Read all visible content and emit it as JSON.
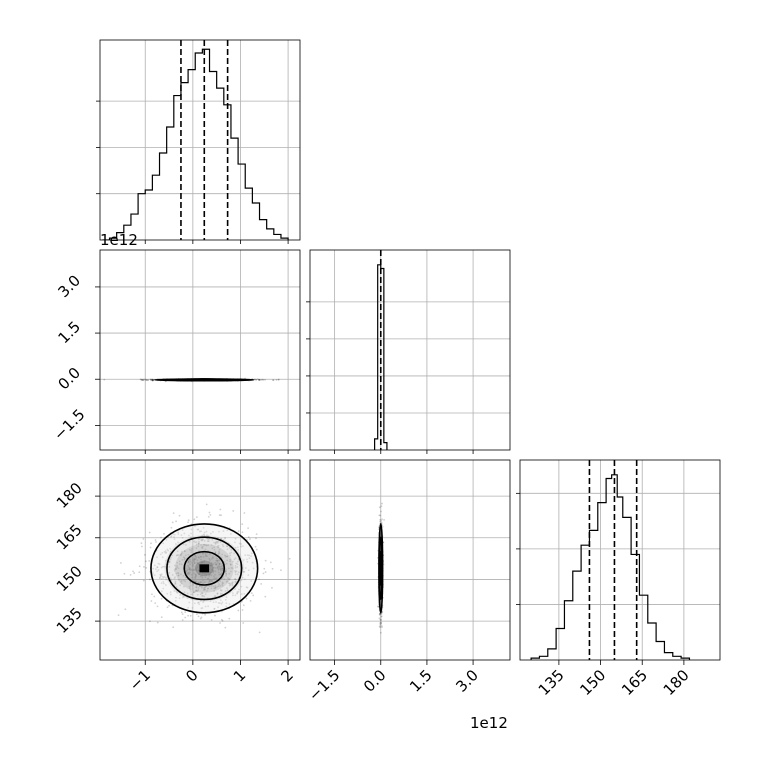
{
  "chart_data": {
    "type": "corner",
    "parameters": 3,
    "grid": true,
    "quantile_lines": "dashed",
    "panels": [
      {
        "id": "hist-p1",
        "kind": "histogram",
        "xlim": [
          -1.95,
          2.25
        ],
        "edges": [
          -1.9,
          -1.75,
          -1.6,
          -1.45,
          -1.3,
          -1.15,
          -1.0,
          -0.85,
          -0.7,
          -0.55,
          -0.4,
          -0.25,
          -0.1,
          0.05,
          0.2,
          0.35,
          0.5,
          0.65,
          0.8,
          0.95,
          1.1,
          1.25,
          1.4,
          1.55,
          1.7,
          1.85,
          2.0
        ],
        "counts": [
          0,
          1,
          4,
          8,
          14,
          25,
          27,
          35,
          47,
          61,
          78,
          85,
          92,
          101,
          103,
          91,
          82,
          73,
          55,
          41,
          28,
          20,
          11,
          6,
          3,
          1
        ],
        "quantiles": [
          -0.25,
          0.24,
          0.73
        ],
        "ylim": [
          0,
          108
        ],
        "ytick_values": [
          25,
          50,
          75
        ]
      },
      {
        "id": "scatter-p1-p2",
        "kind": "2d-density",
        "xlim": [
          -1.95,
          2.25
        ],
        "ylim": [
          -2.3,
          4.2
        ],
        "y_offset_text": "1e12",
        "center": [
          0.24,
          -0.02
        ],
        "spread": [
          0.52,
          0.012
        ],
        "contour_levels": [
          1.0,
          0.65,
          0.35
        ]
      },
      {
        "id": "hist-p2",
        "kind": "histogram",
        "xlim": [
          -2.3,
          4.2
        ],
        "edges": [
          -0.2,
          -0.1,
          0.0,
          0.1,
          0.2
        ],
        "counts": [
          6,
          100,
          98,
          4
        ],
        "quantiles": [
          0.0
        ],
        "ylim": [
          0,
          108
        ],
        "ytick_values": [
          20,
          40,
          60,
          80
        ]
      },
      {
        "id": "scatter-p1-p3",
        "kind": "2d-density",
        "xlim": [
          -1.95,
          2.25
        ],
        "ylim": [
          121,
          193
        ],
        "center": [
          0.24,
          154
        ],
        "spread": [
          0.56,
          8.0
        ],
        "contour_levels": [
          1.0,
          0.62,
          0.28
        ]
      },
      {
        "id": "scatter-p2-p3",
        "kind": "2d-density",
        "xlim": [
          -2.3,
          4.2
        ],
        "ylim": [
          121,
          193
        ],
        "center": [
          0.0,
          154
        ],
        "spread": [
          0.03,
          8.0
        ],
        "contour_levels": [
          1.0,
          0.62,
          0.28
        ]
      },
      {
        "id": "hist-p3",
        "kind": "histogram",
        "xlim": [
          121,
          193
        ],
        "edges": [
          125,
          128,
          131,
          134,
          137,
          140,
          143,
          146,
          149,
          152,
          154,
          156,
          158,
          161,
          164,
          167,
          170,
          173,
          176,
          179,
          182
        ],
        "counts": [
          1,
          2,
          6,
          17,
          32,
          48,
          62,
          70,
          85,
          98,
          100,
          88,
          77,
          57,
          35,
          20,
          10,
          4,
          2,
          1
        ],
        "quantiles": [
          146,
          155,
          163
        ],
        "ylim": [
          0,
          108
        ],
        "ytick_values": [
          30,
          60,
          90
        ]
      }
    ],
    "x_ticks": {
      "p1": {
        "values": [
          -1,
          0,
          1,
          2
        ],
        "labels": [
          "−1",
          "0",
          "1",
          "2"
        ]
      },
      "p2": {
        "values": [
          -1.5,
          0.0,
          1.5,
          3.0
        ],
        "labels": [
          "−1.5",
          "0.0",
          "1.5",
          "3.0"
        ],
        "offset_text": "1e12"
      },
      "p3": {
        "values": [
          135,
          150,
          165,
          180
        ],
        "labels": [
          "135",
          "150",
          "165",
          "180"
        ]
      }
    },
    "y_ticks": {
      "p2": {
        "values": [
          3.0,
          1.5,
          0.0,
          -1.5
        ],
        "labels": [
          "3.0",
          "1.5",
          "0.0",
          "−1.5"
        ]
      },
      "p3": {
        "values": [
          180,
          165,
          150,
          135
        ],
        "labels": [
          "180",
          "165",
          "150",
          "135"
        ]
      }
    }
  }
}
